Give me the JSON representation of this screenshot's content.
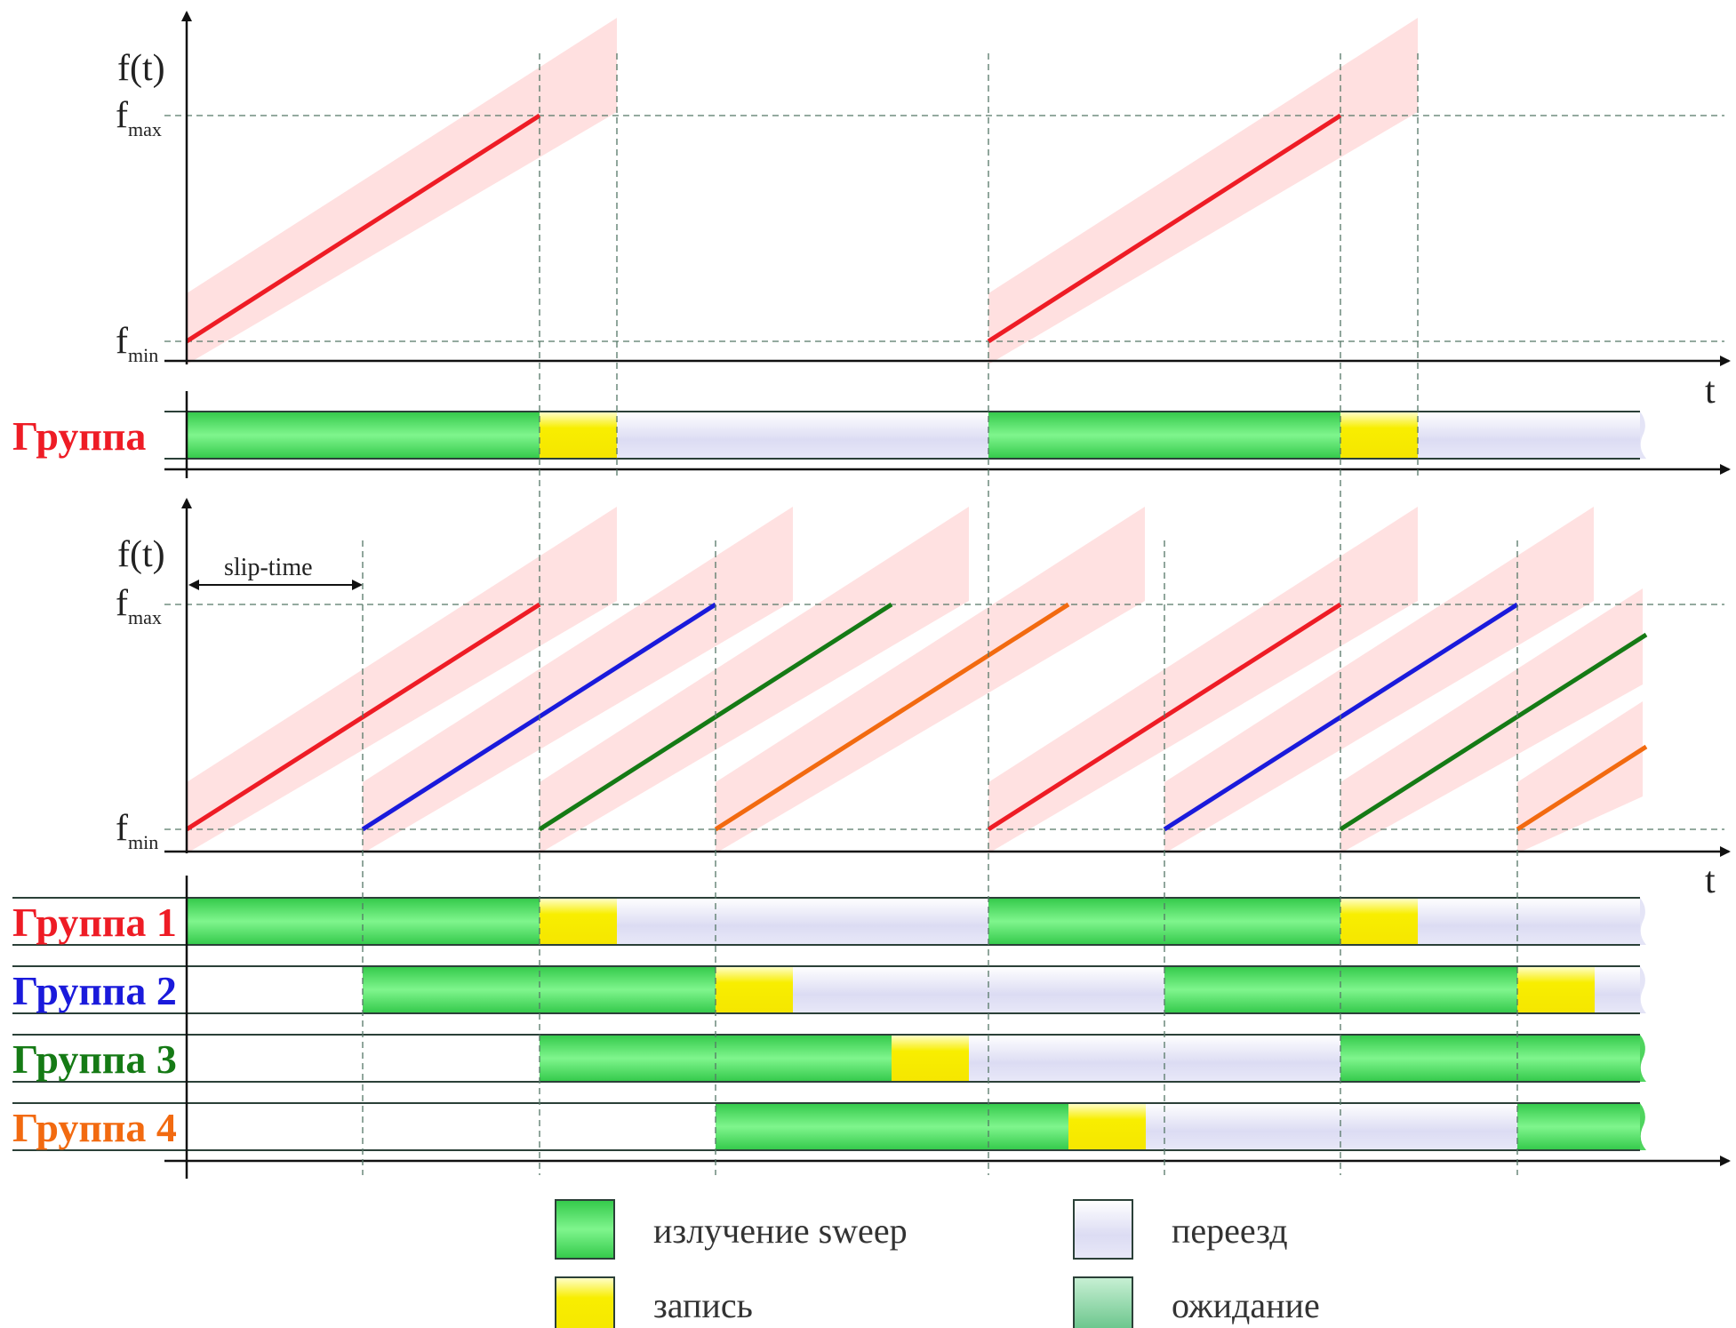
{
  "axis_labels": {
    "y": "f(t)",
    "x": "t",
    "fmax_main": "f",
    "fmax_sub": "max",
    "fmin_main": "f",
    "fmin_sub": "min"
  },
  "slip_time_label": "slip-time",
  "group_labels": {
    "single": "Группа",
    "g1": "Группа 1",
    "g2": "Группа 2",
    "g3": "Группа 3",
    "g4": "Группа 4"
  },
  "legend": {
    "sweep": "излучение sweep",
    "record": "запись",
    "move": "переезд",
    "wait": "ожидание"
  },
  "colors": {
    "group1": "#ee1c25",
    "group2": "#1a1adb",
    "group3": "#157a15",
    "group4": "#f26a10",
    "sweep": "#5fe06a",
    "record": "#f7f000",
    "move": "#e2e3f6",
    "wait": "#8fd6a8"
  }
}
